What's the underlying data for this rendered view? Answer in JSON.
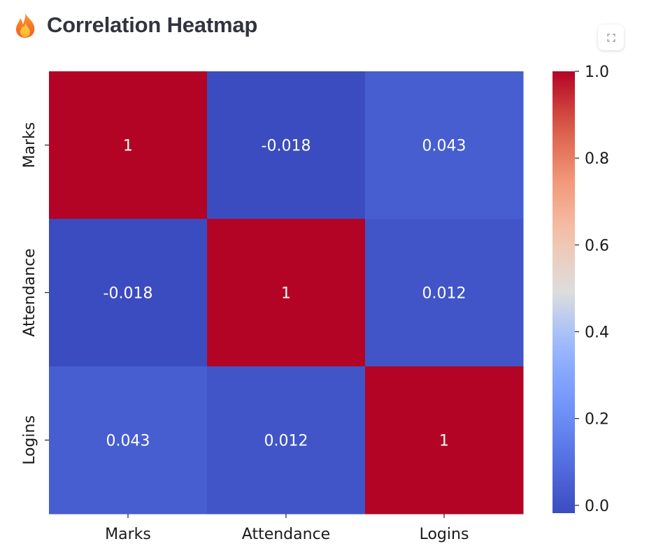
{
  "header": {
    "title": "Correlation Heatmap",
    "icon": "fire-icon"
  },
  "toolbar": {
    "fullscreen_icon": "fullscreen-icon"
  },
  "chart_data": {
    "type": "heatmap",
    "title": "Correlation Heatmap",
    "rows": [
      "Marks",
      "Attendance",
      "Logins"
    ],
    "columns": [
      "Marks",
      "Attendance",
      "Logins"
    ],
    "values": [
      [
        1,
        -0.018,
        0.043
      ],
      [
        -0.018,
        1,
        0.012
      ],
      [
        0.043,
        0.012,
        1
      ]
    ],
    "annotations": [
      [
        "1",
        "-0.018",
        "0.043"
      ],
      [
        "-0.018",
        "1",
        "0.012"
      ],
      [
        "0.043",
        "0.012",
        "1"
      ]
    ],
    "colormap": "coolwarm",
    "colorbar": {
      "range": [
        -0.018,
        1.0
      ],
      "ticks": [
        0.0,
        0.2,
        0.4,
        0.6,
        0.8,
        1.0
      ],
      "tick_labels": [
        "0.0",
        "0.2",
        "0.4",
        "0.6",
        "0.8",
        "1.0"
      ],
      "colors": {
        "min": "#3b4cc0",
        "max": "#b40426"
      }
    },
    "xlabel": "",
    "ylabel": ""
  }
}
